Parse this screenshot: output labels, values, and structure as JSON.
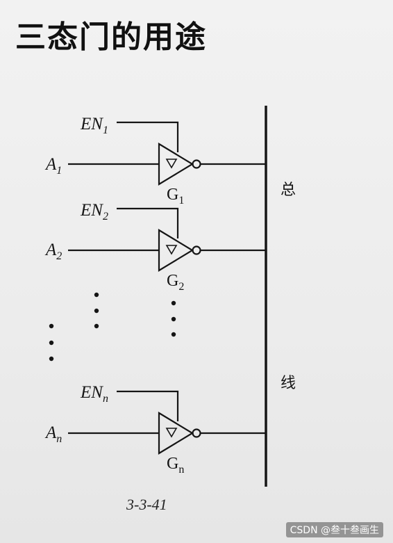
{
  "title": "三态门的用途",
  "gates": [
    {
      "en_main": "EN",
      "en_sub": "1",
      "a_main": "A",
      "a_sub": "1",
      "g_main": "G",
      "g_sub": "1"
    },
    {
      "en_main": "EN",
      "en_sub": "2",
      "a_main": "A",
      "a_sub": "2",
      "g_main": "G",
      "g_sub": "2"
    },
    {
      "en_main": "EN",
      "en_sub": "n",
      "a_main": "A",
      "a_sub": "n",
      "g_main": "G",
      "g_sub": "n"
    }
  ],
  "bus_label_top": "总",
  "bus_label_bottom": "线",
  "figure_caption": "3-3-41",
  "watermark": "CSDN @叁十叁画生",
  "colors": {
    "ink": "#151515",
    "background": "#eeeeee"
  }
}
